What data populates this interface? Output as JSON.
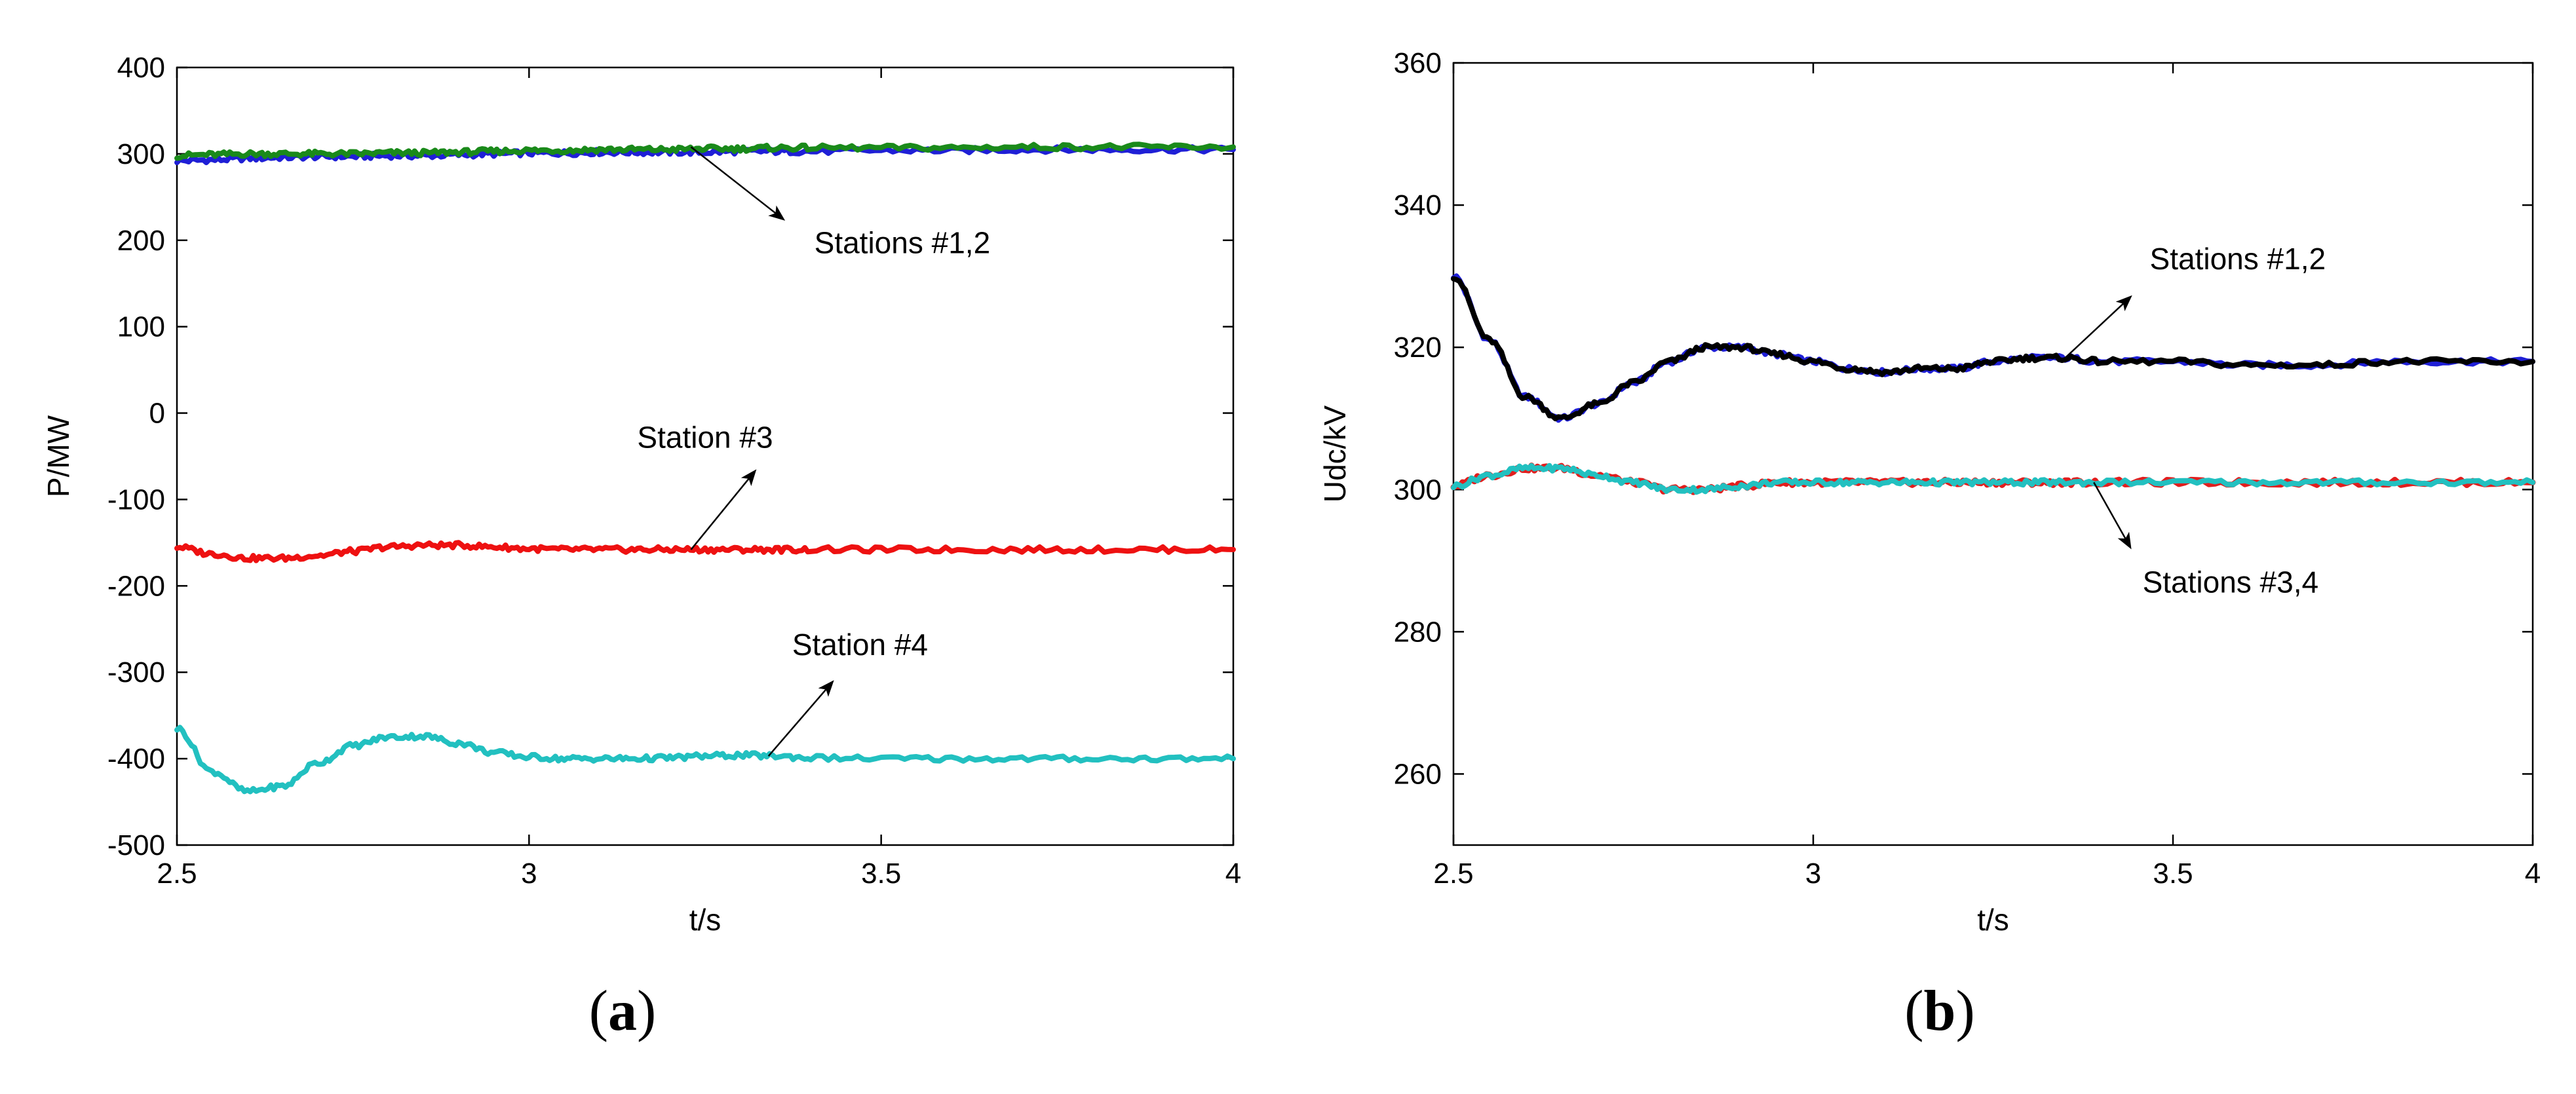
{
  "chart_data": [
    {
      "panel": "a",
      "type": "line",
      "xlabel": "t/s",
      "ylabel": "P/MW",
      "xlim": [
        2.5,
        4
      ],
      "ylim": [
        -500,
        400
      ],
      "xticks": [
        "2.5",
        "3",
        "3.5",
        "4"
      ],
      "yticks": [
        "400",
        "300",
        "200",
        "100",
        "0",
        "-100",
        "-200",
        "-300",
        "-400",
        "-500"
      ],
      "grid": false,
      "x": [
        2.5,
        2.55,
        2.6,
        2.65,
        2.7,
        2.75,
        2.8,
        2.85,
        2.9,
        2.95,
        3.0,
        3.05,
        3.1,
        3.15,
        3.2,
        3.25,
        3.3,
        3.35,
        3.4,
        3.5,
        3.6,
        3.7,
        3.8,
        3.9,
        4.0
      ],
      "series": [
        {
          "color": "#1f1fd6",
          "values": [
            292,
            293,
            295,
            296,
            297,
            297,
            298,
            298,
            299,
            300,
            301,
            301,
            302,
            302,
            302,
            302,
            303,
            303,
            303,
            304,
            304,
            305,
            305,
            305,
            305
          ]
        },
        {
          "color": "#1a8a1a",
          "values": [
            298,
            299,
            300,
            300,
            300,
            300,
            301,
            301,
            302,
            303,
            304,
            304,
            305,
            305,
            305,
            306,
            306,
            307,
            307,
            307,
            307,
            308,
            308,
            308,
            308
          ]
        },
        {
          "color": "#ee1111",
          "values": [
            -155,
            -163,
            -168,
            -168,
            -165,
            -160,
            -155,
            -153,
            -153,
            -155,
            -157,
            -158,
            -158,
            -158,
            -158,
            -158,
            -158,
            -158,
            -158,
            -158,
            -158,
            -158,
            -158,
            -158,
            -158
          ]
        },
        {
          "color": "#22c0c0",
          "values": [
            -365,
            -415,
            -438,
            -432,
            -405,
            -385,
            -375,
            -374,
            -382,
            -393,
            -398,
            -400,
            -400,
            -400,
            -399,
            -397,
            -396,
            -397,
            -399,
            -400,
            -400,
            -400,
            -400,
            -400,
            -400
          ]
        }
      ],
      "annotations": [
        {
          "text": "Stations #1,2",
          "tx": 3.53,
          "ty": 185,
          "ax1": 3.23,
          "ay1": 308,
          "ax2": 3.36,
          "ay2": 225,
          "text_below_arrow": true
        },
        {
          "text": "Station #3",
          "tx": 3.25,
          "ty": -40,
          "ax1": 3.23,
          "ay1": -158,
          "ax2": 3.32,
          "ay2": -68,
          "text_below_arrow": false
        },
        {
          "text": "Station #4",
          "tx": 3.47,
          "ty": -280,
          "ax1": 3.34,
          "ay1": -397,
          "ax2": 3.43,
          "ay2": -312,
          "text_below_arrow": false
        }
      ]
    },
    {
      "panel": "b",
      "type": "line",
      "xlabel": "t/s",
      "ylabel": "Udc/kV",
      "xlim": [
        2.5,
        4
      ],
      "ylim": [
        250,
        360
      ],
      "xticks": [
        "2.5",
        "3",
        "3.5",
        "4"
      ],
      "yticks": [
        "360",
        "340",
        "320",
        "300",
        "280",
        "260"
      ],
      "grid": false,
      "x": [
        2.5,
        2.55,
        2.6,
        2.65,
        2.7,
        2.75,
        2.8,
        2.85,
        2.9,
        2.95,
        3.0,
        3.05,
        3.1,
        3.15,
        3.2,
        3.25,
        3.3,
        3.35,
        3.4,
        3.5,
        3.6,
        3.7,
        3.8,
        3.9,
        4.0
      ],
      "series": [
        {
          "color": "#1f1fd6",
          "values": [
            330,
            321,
            313,
            310,
            312,
            315,
            318,
            320,
            320,
            319,
            318,
            317,
            316.5,
            317,
            317,
            318,
            318.5,
            318.5,
            318,
            318,
            317.5,
            317.5,
            318,
            318,
            318
          ]
        },
        {
          "color": "#000000",
          "values": [
            330,
            321,
            313,
            310,
            312,
            315,
            318,
            320,
            320,
            319,
            318,
            317,
            316.5,
            317,
            317,
            318,
            318.5,
            318.5,
            318,
            318,
            317.5,
            317.5,
            318,
            318,
            318
          ]
        },
        {
          "color": "#e21e1e",
          "values": [
            300.5,
            302,
            303,
            303,
            302,
            301,
            300,
            300,
            300.5,
            301,
            301,
            301,
            301,
            301,
            301,
            301,
            301,
            301,
            301,
            301,
            301,
            301,
            301,
            301,
            301
          ]
        },
        {
          "color": "#22c0c0",
          "values": [
            300.5,
            302,
            303,
            303,
            302,
            301,
            300,
            300,
            300.5,
            301,
            301,
            301,
            301,
            301,
            301,
            301,
            301,
            301,
            301,
            301,
            301,
            301,
            301,
            301,
            301
          ]
        }
      ],
      "annotations": [
        {
          "text": "Stations #1,2",
          "tx": 3.59,
          "ty": 331,
          "ax1": 3.35,
          "ay1": 318.5,
          "ax2": 3.44,
          "ay2": 327,
          "text_below_arrow": false
        },
        {
          "text": "Stations #3,4",
          "tx": 3.58,
          "ty": 285.5,
          "ax1": 3.39,
          "ay1": 301,
          "ax2": 3.44,
          "ay2": 292,
          "text_below_arrow": true
        }
      ]
    }
  ],
  "panel_labels": {
    "a": {
      "open": "(",
      "letter": "a",
      "close": ")"
    },
    "b": {
      "open": "(",
      "letter": "b",
      "close": ")"
    }
  }
}
